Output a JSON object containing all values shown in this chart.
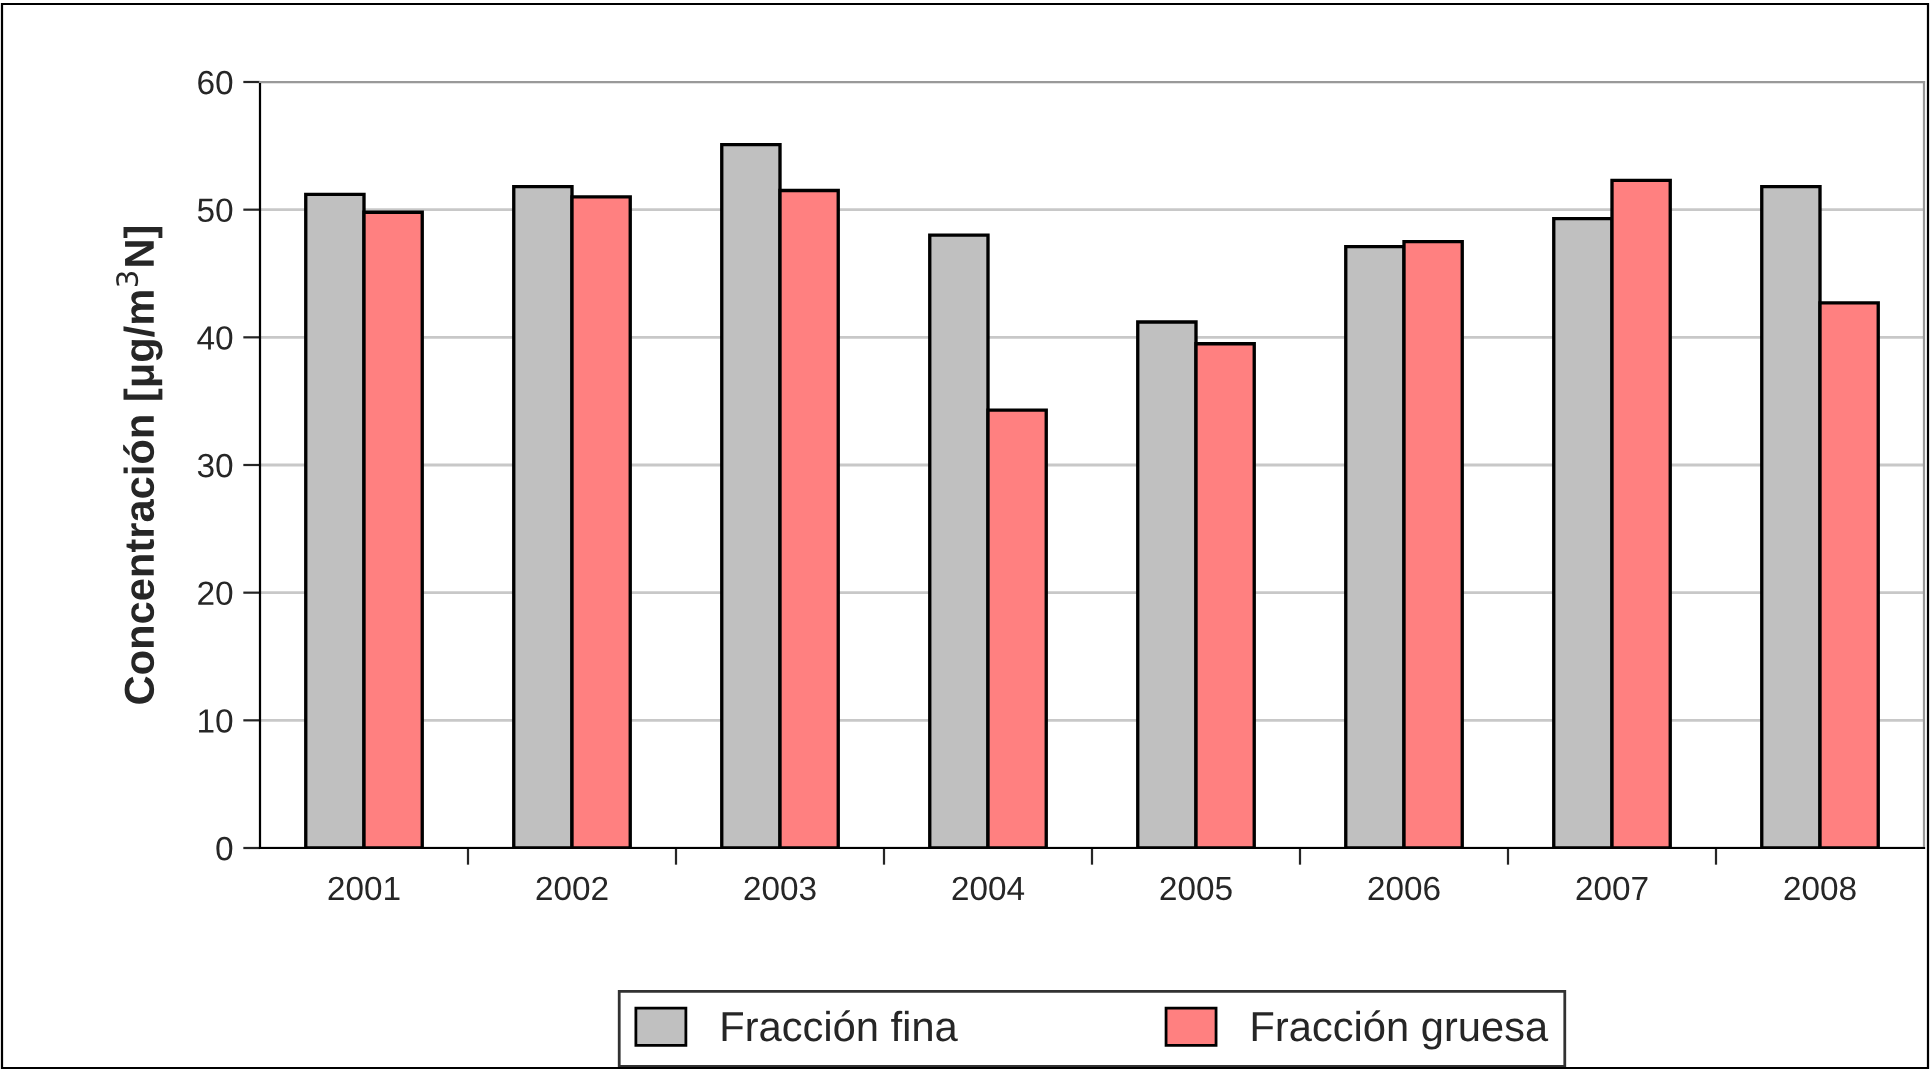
{
  "chart_data": {
    "type": "bar",
    "ylabel": "Concentración [μg/m$^{3}$N]",
    "categories": [
      "2001",
      "2002",
      "2003",
      "2004",
      "2005",
      "2006",
      "2007",
      "2008"
    ],
    "series": [
      {
        "name": "Fracción fina",
        "color": "#c0c0c0",
        "values": [
          51.2,
          51.8,
          55.1,
          48.0,
          41.2,
          47.1,
          49.3,
          51.8
        ]
      },
      {
        "name": "Fracción gruesa",
        "color": "#ff8080",
        "values": [
          49.8,
          51.0,
          51.5,
          34.3,
          39.5,
          47.5,
          52.3,
          42.7
        ]
      }
    ],
    "ylim": [
      0,
      60
    ],
    "yticks": [
      0,
      10,
      20,
      30,
      40,
      50,
      60
    ],
    "grid": "y",
    "legend": "bottom"
  }
}
